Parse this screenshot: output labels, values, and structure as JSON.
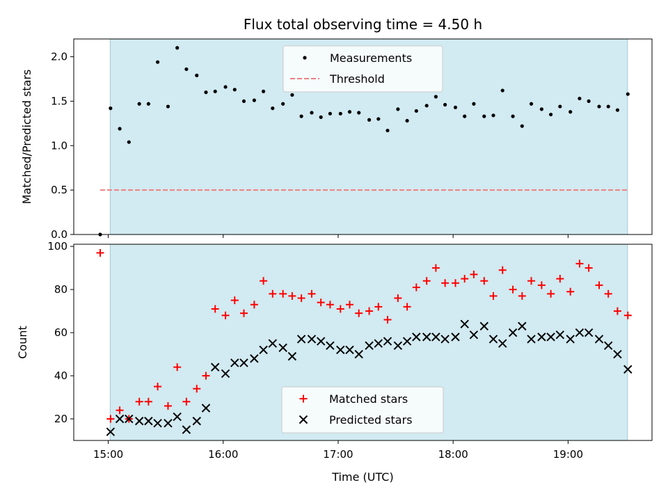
{
  "chart_data": {
    "type": "scatter",
    "title": "Flux total observing time = 4.50 h",
    "xlabel": "Time (UTC)",
    "x_unit": "hours (UTC)",
    "xlim": [
      14.7,
      19.73
    ],
    "x_ticks": [
      15,
      16,
      17,
      18,
      19
    ],
    "x_tick_labels": [
      "15:00",
      "16:00",
      "17:00",
      "18:00",
      "19:00"
    ],
    "shaded_interval": {
      "start": 15.017,
      "end": 19.517,
      "color": "#add8e6"
    },
    "panels": [
      {
        "id": "top",
        "ylabel": "Matched/Predicted stars",
        "ylim": [
          0.0,
          2.2
        ],
        "y_ticks": [
          0.0,
          0.5,
          1.0,
          1.5,
          2.0
        ],
        "y_tick_labels": [
          "0.0",
          "0.5",
          "1.0",
          "1.5",
          "2.0"
        ],
        "legend": {
          "position": "upper center"
        },
        "series": [
          {
            "name": "Measurements",
            "marker": "dot",
            "color": "#000000",
            "x": [
              14.93,
              15.02,
              15.1,
              15.18,
              15.27,
              15.35,
              15.43,
              15.52,
              15.6,
              15.68,
              15.77,
              15.85,
              15.93,
              16.02,
              16.1,
              16.18,
              16.27,
              16.35,
              16.43,
              16.52,
              16.6,
              16.68,
              16.77,
              16.85,
              16.93,
              17.02,
              17.1,
              17.18,
              17.27,
              17.35,
              17.43,
              17.52,
              17.6,
              17.68,
              17.77,
              17.85,
              17.93,
              18.02,
              18.1,
              18.18,
              18.27,
              18.35,
              18.43,
              18.52,
              18.6,
              18.68,
              18.77,
              18.85,
              18.93,
              19.02,
              19.1,
              19.18,
              19.27,
              19.35,
              19.43,
              19.52
            ],
            "y": [
              0.0,
              1.42,
              1.19,
              1.04,
              1.47,
              1.47,
              1.94,
              1.44,
              2.1,
              1.86,
              1.79,
              1.6,
              1.61,
              1.66,
              1.63,
              1.5,
              1.51,
              1.61,
              1.42,
              1.47,
              1.57,
              1.33,
              1.37,
              1.32,
              1.36,
              1.36,
              1.38,
              1.37,
              1.29,
              1.3,
              1.17,
              1.41,
              1.28,
              1.39,
              1.45,
              1.55,
              1.46,
              1.43,
              1.33,
              1.47,
              1.33,
              1.34,
              1.62,
              1.33,
              1.22,
              1.47,
              1.41,
              1.35,
              1.44,
              1.38,
              1.53,
              1.5,
              1.44,
              1.44,
              1.4,
              1.58
            ]
          },
          {
            "name": "Threshold",
            "marker": "dashed-line",
            "color": "#f08080",
            "x": [
              14.93,
              19.52
            ],
            "y": [
              0.5,
              0.5
            ]
          }
        ]
      },
      {
        "id": "bottom",
        "ylabel": "Count",
        "ylim": [
          10,
          101
        ],
        "y_ticks": [
          20,
          40,
          60,
          80,
          100
        ],
        "y_tick_labels": [
          "20",
          "40",
          "60",
          "80",
          "100"
        ],
        "legend": {
          "position": "lower center"
        },
        "series": [
          {
            "name": "Matched stars",
            "marker": "plus",
            "color": "#ff0000",
            "x": [
              14.93,
              15.02,
              15.1,
              15.18,
              15.27,
              15.35,
              15.43,
              15.52,
              15.6,
              15.68,
              15.77,
              15.85,
              15.93,
              16.02,
              16.1,
              16.18,
              16.27,
              16.35,
              16.43,
              16.52,
              16.6,
              16.68,
              16.77,
              16.85,
              16.93,
              17.02,
              17.1,
              17.18,
              17.27,
              17.35,
              17.43,
              17.52,
              17.6,
              17.68,
              17.77,
              17.85,
              17.93,
              18.02,
              18.1,
              18.18,
              18.27,
              18.35,
              18.43,
              18.52,
              18.6,
              18.68,
              18.77,
              18.85,
              18.93,
              19.02,
              19.1,
              19.18,
              19.27,
              19.35,
              19.43,
              19.52
            ],
            "y": [
              97,
              20,
              24,
              20,
              28,
              28,
              35,
              26,
              44,
              28,
              34,
              40,
              71,
              68,
              75,
              69,
              73,
              84,
              78,
              78,
              77,
              76,
              78,
              74,
              73,
              71,
              73,
              69,
              70,
              72,
              66,
              76,
              72,
              81,
              84,
              90,
              83,
              83,
              85,
              87,
              84,
              77,
              89,
              80,
              77,
              84,
              82,
              78,
              85,
              79,
              92,
              90,
              82,
              78,
              70,
              68
            ]
          },
          {
            "name": "Predicted stars",
            "marker": "x",
            "color": "#000000",
            "x": [
              15.02,
              15.1,
              15.18,
              15.27,
              15.35,
              15.43,
              15.52,
              15.6,
              15.68,
              15.77,
              15.85,
              15.93,
              16.02,
              16.1,
              16.18,
              16.27,
              16.35,
              16.43,
              16.52,
              16.6,
              16.68,
              16.77,
              16.85,
              16.93,
              17.02,
              17.1,
              17.18,
              17.27,
              17.35,
              17.43,
              17.52,
              17.6,
              17.68,
              17.77,
              17.85,
              17.93,
              18.02,
              18.1,
              18.18,
              18.27,
              18.35,
              18.43,
              18.52,
              18.6,
              18.68,
              18.77,
              18.85,
              18.93,
              19.02,
              19.1,
              19.18,
              19.27,
              19.35,
              19.43,
              19.52
            ],
            "y": [
              14,
              20,
              20,
              19,
              19,
              18,
              18,
              21,
              15,
              19,
              25,
              44,
              41,
              46,
              46,
              48,
              52,
              55,
              53,
              49,
              57,
              57,
              56,
              54,
              52,
              52,
              50,
              54,
              55,
              56,
              54,
              56,
              58,
              58,
              58,
              57,
              58,
              64,
              59,
              63,
              57,
              55,
              60,
              63,
              57,
              58,
              58,
              59,
              57,
              60,
              60,
              57,
              54,
              50,
              43
            ]
          }
        ]
      }
    ]
  }
}
